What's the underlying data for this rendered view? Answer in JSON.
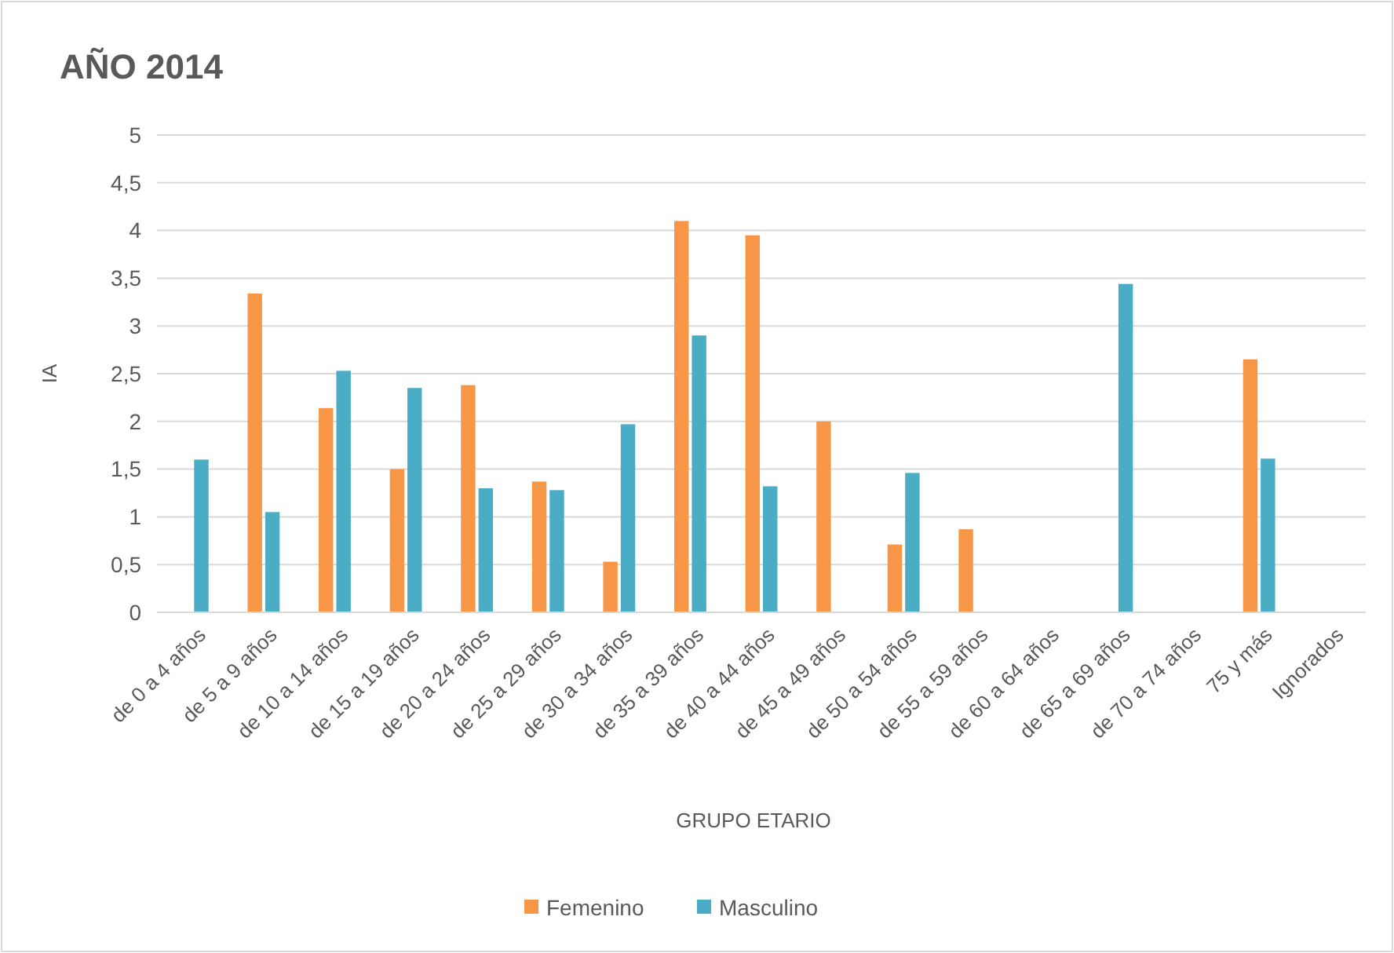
{
  "chart_data": {
    "type": "bar",
    "title": "AÑO 2014",
    "xlabel": "GRUPO ETARIO",
    "ylabel": "IA",
    "categories": [
      "de 0 a 4 años",
      "de 5 a 9 años",
      "de 10 a 14 años",
      "de 15 a 19 años",
      "de 20 a 24 años",
      "de 25 a 29 años",
      "de 30 a 34 años",
      "de 35 a 39 años",
      "de 40 a 44 años",
      "de 45 a 49 años",
      "de 50 a 54 años",
      "de 55 a 59 años",
      "de 60 a 64 años",
      "de 65 a 69 años",
      "de 70 a 74 años",
      "75 y más",
      "Ignorados"
    ],
    "series": [
      {
        "name": "Femenino",
        "color": "#f79646",
        "values": [
          null,
          3.34,
          2.14,
          1.5,
          2.38,
          1.37,
          0.53,
          4.1,
          3.95,
          2.0,
          0.71,
          0.87,
          null,
          null,
          null,
          2.65,
          null
        ]
      },
      {
        "name": "Masculino",
        "color": "#4bacc6",
        "values": [
          1.6,
          1.05,
          2.53,
          2.35,
          1.3,
          1.28,
          1.97,
          2.9,
          1.32,
          null,
          1.46,
          null,
          null,
          3.44,
          null,
          1.61,
          null
        ]
      }
    ],
    "ylim": [
      0,
      5
    ],
    "yticks": [
      0,
      {
        "value": 0.5,
        "label": "0,5"
      },
      1,
      {
        "value": 1.5,
        "label": "1,5"
      },
      2,
      {
        "value": 2.5,
        "label": "2,5"
      },
      3,
      {
        "value": 3.5,
        "label": "3,5"
      },
      4,
      {
        "value": 4.5,
        "label": "4,5"
      },
      5
    ],
    "grid": "y",
    "legend": "bottom"
  }
}
